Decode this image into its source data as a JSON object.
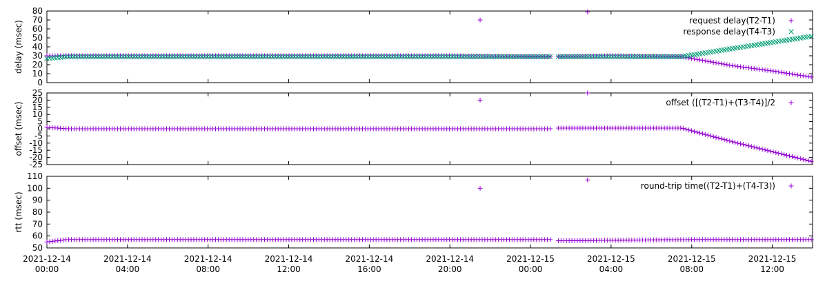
{
  "chart_data": [
    {
      "type": "scatter",
      "ylabel": "delay (msec)",
      "ylim": [
        0,
        80
      ],
      "yticks": [
        "0",
        "10",
        "20",
        "30",
        "40",
        "50",
        "60",
        "70",
        "80"
      ],
      "xlim": [
        "2021-12-14 00:00",
        "2021-12-15 14:00"
      ],
      "legend_position": "top-right",
      "series": [
        {
          "name": "request delay(T2-T1)",
          "marker": "+",
          "color": "#9400d3",
          "description": "flat ~30 from 2021-12-14 00:00 to 2021-12-15 07:30, then declining linearly to ~5 at 2021-12-15 14:00; gap ~2021-12-15 01:00-01:20",
          "points": [
            [
              "2021-12-14 00:00",
              30
            ],
            [
              "2021-12-14 04:00",
              30
            ],
            [
              "2021-12-14 08:00",
              30
            ],
            [
              "2021-12-14 12:00",
              30
            ],
            [
              "2021-12-14 16:00",
              30
            ],
            [
              "2021-12-14 20:00",
              30
            ],
            [
              "2021-12-14 21:30",
              70
            ],
            [
              "2021-12-15 00:00",
              29
            ],
            [
              "2021-12-15 01:00",
              29
            ],
            [
              "2021-12-15 01:20",
              29
            ],
            [
              "2021-12-15 02:50",
              79
            ],
            [
              "2021-12-15 04:00",
              30
            ],
            [
              "2021-12-15 07:30",
              29
            ],
            [
              "2021-12-15 08:00",
              27
            ],
            [
              "2021-12-15 10:00",
              19
            ],
            [
              "2021-12-15 12:00",
              13
            ],
            [
              "2021-12-15 14:00",
              6
            ]
          ]
        },
        {
          "name": "response delay(T4-T3)",
          "marker": "x",
          "color": "#009e73",
          "description": "~27 at start rising to ~29, flat ~29 until 2021-12-15 07:30, then increasing linearly to ~52 at 2021-12-15 14:00",
          "points": [
            [
              "2021-12-14 00:00",
              27
            ],
            [
              "2021-12-14 01:00",
              29
            ],
            [
              "2021-12-14 08:00",
              29
            ],
            [
              "2021-12-14 16:00",
              29
            ],
            [
              "2021-12-15 00:00",
              29
            ],
            [
              "2021-12-15 01:00",
              29
            ],
            [
              "2021-12-15 01:20",
              29
            ],
            [
              "2021-12-15 07:30",
              29
            ],
            [
              "2021-12-15 10:00",
              38
            ],
            [
              "2021-12-15 12:00",
              45
            ],
            [
              "2021-12-15 14:00",
              52
            ]
          ]
        }
      ]
    },
    {
      "type": "scatter",
      "ylabel": "offset (msec)",
      "ylim": [
        -25,
        25
      ],
      "yticks": [
        "-25",
        "-20",
        "-15",
        "-10",
        "-5",
        "0",
        "5",
        "10",
        "15",
        "20",
        "25"
      ],
      "xlim": [
        "2021-12-14 00:00",
        "2021-12-15 14:00"
      ],
      "legend_position": "top-right",
      "series": [
        {
          "name": "offset ([(T2-T1)+(T3-T4)]/2",
          "marker": "+",
          "color": "#9400d3",
          "description": "~1 at start, ~0 flat until 2021-12-15 07:30, then declining linearly to ~-23 at 2021-12-15 14:00",
          "points": [
            [
              "2021-12-14 00:00",
              1
            ],
            [
              "2021-12-14 01:00",
              0
            ],
            [
              "2021-12-14 08:00",
              0
            ],
            [
              "2021-12-14 16:00",
              0
            ],
            [
              "2021-12-14 21:30",
              20
            ],
            [
              "2021-12-15 00:00",
              0
            ],
            [
              "2021-12-15 01:00",
              0
            ],
            [
              "2021-12-15 01:20",
              0.5
            ],
            [
              "2021-12-15 02:50",
              25
            ],
            [
              "2021-12-15 07:30",
              0.5
            ],
            [
              "2021-12-15 10:00",
              -9
            ],
            [
              "2021-12-15 12:00",
              -16
            ],
            [
              "2021-12-15 14:00",
              -23
            ]
          ]
        }
      ]
    },
    {
      "type": "scatter",
      "ylabel": "rtt (msec)",
      "ylim": [
        50,
        110
      ],
      "yticks": [
        "50",
        "60",
        "70",
        "80",
        "90",
        "100",
        "110"
      ],
      "xlim": [
        "2021-12-14 00:00",
        "2021-12-15 14:00"
      ],
      "xticks": [
        {
          "top": "2021-12-14",
          "bottom": "00:00"
        },
        {
          "top": "2021-12-14",
          "bottom": "04:00"
        },
        {
          "top": "2021-12-14",
          "bottom": "08:00"
        },
        {
          "top": "2021-12-14",
          "bottom": "12:00"
        },
        {
          "top": "2021-12-14",
          "bottom": "16:00"
        },
        {
          "top": "2021-12-14",
          "bottom": "20:00"
        },
        {
          "top": "2021-12-15",
          "bottom": "00:00"
        },
        {
          "top": "2021-12-15",
          "bottom": "04:00"
        },
        {
          "top": "2021-12-15",
          "bottom": "08:00"
        },
        {
          "top": "2021-12-15",
          "bottom": "12:00"
        }
      ],
      "legend_position": "top-right",
      "series": [
        {
          "name": "round-trip time((T2-T1)+(T4-T3))",
          "marker": "+",
          "color": "#9400d3",
          "description": "~55 at start, then ~57 flat throughout",
          "points": [
            [
              "2021-12-14 00:00",
              55
            ],
            [
              "2021-12-14 01:00",
              57
            ],
            [
              "2021-12-14 08:00",
              57
            ],
            [
              "2021-12-14 16:00",
              57
            ],
            [
              "2021-12-14 21:30",
              100
            ],
            [
              "2021-12-15 00:00",
              57
            ],
            [
              "2021-12-15 01:00",
              57
            ],
            [
              "2021-12-15 01:20",
              56
            ],
            [
              "2021-12-15 02:50",
              107
            ],
            [
              "2021-12-15 08:00",
              57
            ],
            [
              "2021-12-15 14:00",
              57
            ]
          ]
        }
      ]
    }
  ]
}
